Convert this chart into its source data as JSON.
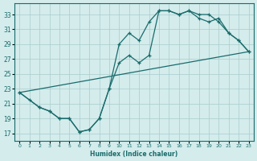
{
  "bg_color": "#d4ecec",
  "line_color": "#1a6b6b",
  "grid_color": "#aacccc",
  "xlabel": "Humidex (Indice chaleur)",
  "xlim": [
    -0.5,
    23.5
  ],
  "ylim": [
    16.0,
    34.5
  ],
  "yticks": [
    17,
    19,
    21,
    23,
    25,
    27,
    29,
    31,
    33
  ],
  "xticks": [
    0,
    1,
    2,
    3,
    4,
    5,
    6,
    7,
    8,
    9,
    10,
    11,
    12,
    13,
    14,
    15,
    16,
    17,
    18,
    19,
    20,
    21,
    22,
    23
  ],
  "line1_x": [
    0,
    1,
    2,
    3,
    4,
    5,
    6,
    7,
    8,
    9,
    10,
    11,
    12,
    13,
    14,
    15,
    16,
    17,
    18,
    19,
    20,
    21,
    22,
    23
  ],
  "line1_y": [
    22.5,
    21.5,
    20.5,
    20.0,
    19.0,
    19.0,
    17.2,
    17.5,
    19.0,
    23.0,
    29.0,
    30.5,
    29.5,
    32.0,
    33.5,
    33.5,
    33.0,
    33.5,
    33.0,
    33.0,
    32.0,
    30.5,
    29.5,
    28.0
  ],
  "line2_x": [
    0,
    2,
    3,
    4,
    5,
    6,
    7,
    8,
    9,
    10,
    11,
    12,
    13,
    14,
    15,
    16,
    17,
    18,
    19,
    20,
    21,
    22,
    23
  ],
  "line2_y": [
    22.5,
    20.5,
    20.0,
    19.0,
    19.0,
    17.2,
    17.5,
    19.0,
    23.0,
    26.5,
    27.5,
    26.5,
    27.5,
    33.5,
    33.5,
    33.0,
    33.5,
    32.5,
    32.0,
    32.5,
    30.5,
    29.5,
    28.0
  ],
  "line3_x": [
    0,
    23
  ],
  "line3_y": [
    22.5,
    28.0
  ]
}
